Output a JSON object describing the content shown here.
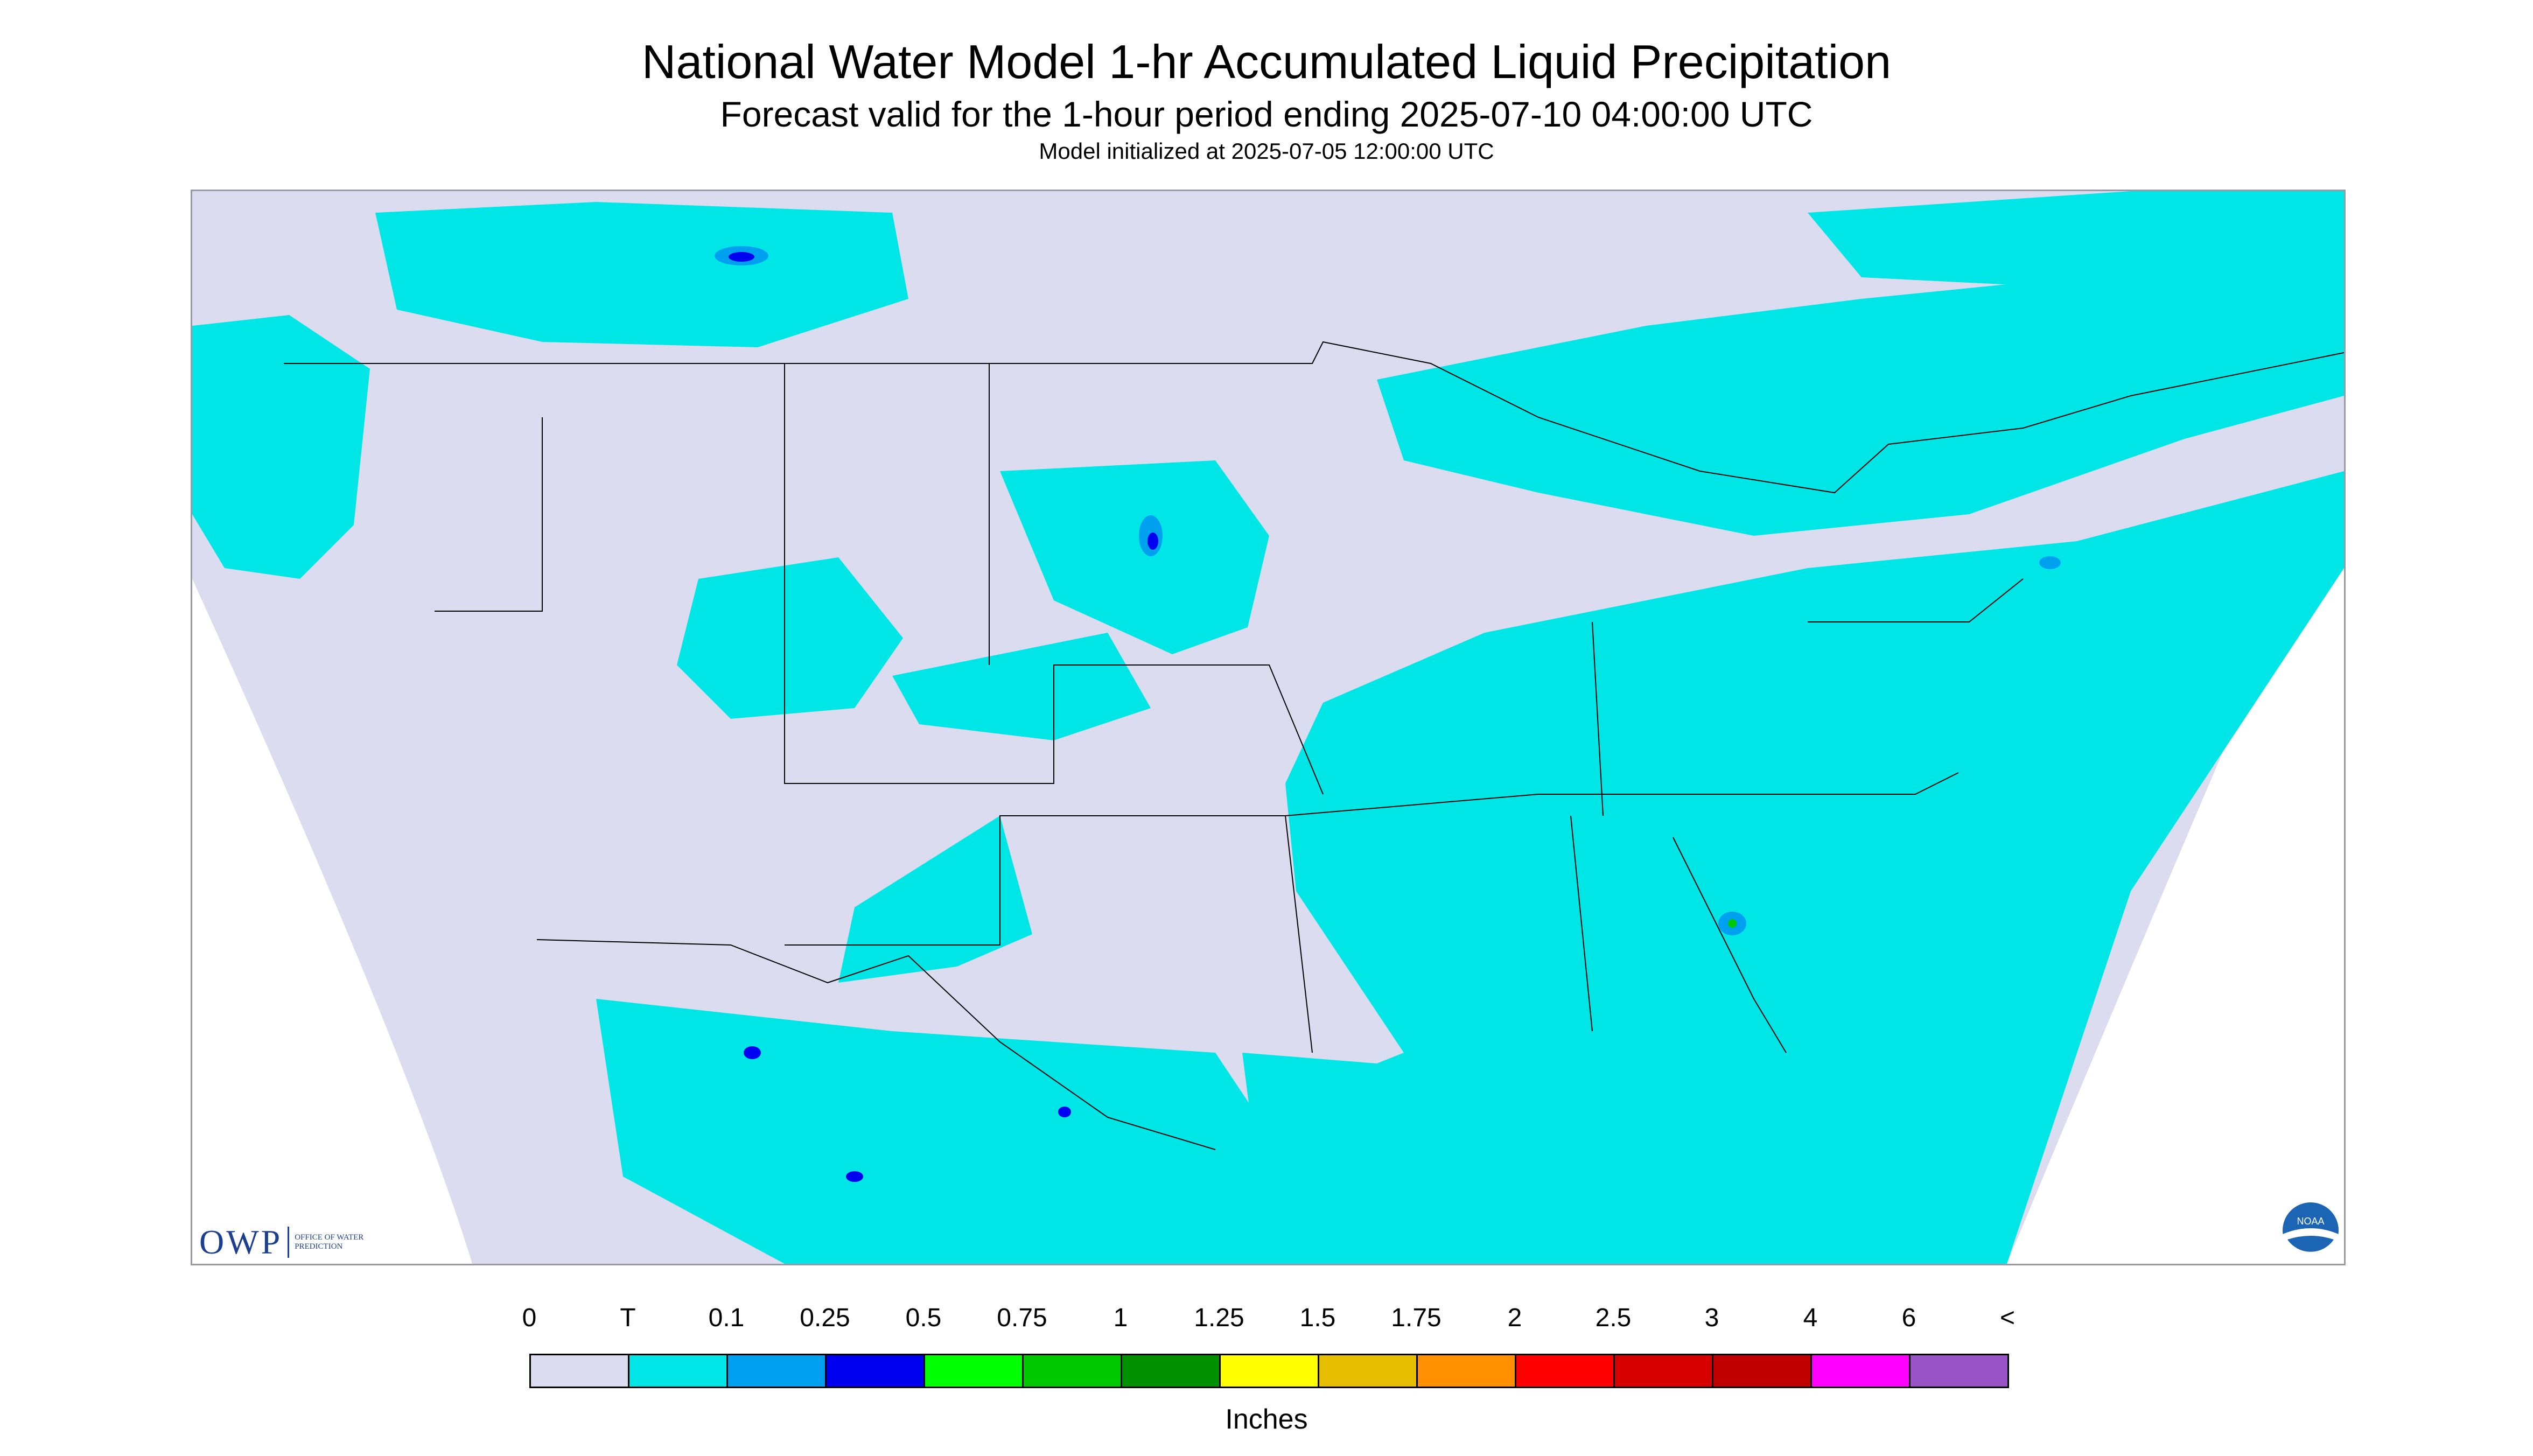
{
  "header": {
    "title": "National Water Model 1-hr Accumulated Liquid Precipitation",
    "subtitle": "Forecast valid for the 1-hour period ending 2025-07-10 04:00:00 UTC",
    "init_line": "Model initialized at 2025-07-05 12:00:00 UTC"
  },
  "logos": {
    "owp_text": "OWP",
    "owp_small": "OFFICE OF WATER PREDICTION",
    "noaa_text": "NOAA"
  },
  "colors": {
    "background_domain": "#dcdcf0",
    "outside_domain": "#ffffff",
    "borders": "#000000"
  },
  "legend": {
    "units": "Inches",
    "labels": [
      "0",
      "T",
      "0.1",
      "0.25",
      "0.5",
      "0.75",
      "1",
      "1.25",
      "1.5",
      "1.75",
      "2",
      "2.5",
      "3",
      "4",
      "6",
      "<"
    ],
    "colors": [
      "#dcdcf0",
      "#00e6e6",
      "#00a0f0",
      "#0000f0",
      "#00ff00",
      "#00c800",
      "#009000",
      "#ffff00",
      "#e6be00",
      "#ff9000",
      "#ff0000",
      "#d60000",
      "#c00000",
      "#ff00ff",
      "#9854c6"
    ]
  },
  "precip_areas": [
    {
      "name": "pacific-northwest",
      "level": "T"
    },
    {
      "name": "southern-canada-prairies",
      "level": "T"
    },
    {
      "name": "northern-plains",
      "level": "T"
    },
    {
      "name": "intermountain-west",
      "level": "T"
    },
    {
      "name": "ohio-valley-southeast",
      "level": "T"
    },
    {
      "name": "northeast-mid-atlantic",
      "level": "T"
    },
    {
      "name": "atlantic-ocean",
      "level": "T"
    },
    {
      "name": "mexico-gulf",
      "level": "T"
    },
    {
      "name": "canada-east",
      "level": "T"
    },
    {
      "name": "south-dakota-cell",
      "level": "0.25"
    },
    {
      "name": "georgia-cell",
      "level": "0.75"
    }
  ]
}
